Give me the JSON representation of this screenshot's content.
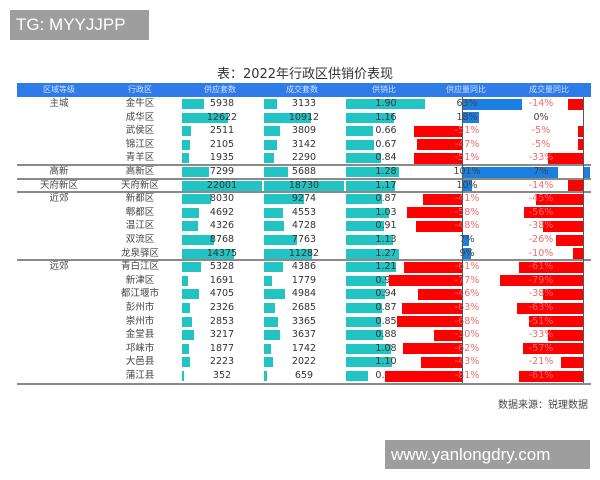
{
  "watermarks": {
    "top": "TG: MYYJJPP",
    "bottom": "www.yanlongdry.com"
  },
  "title": "表：2022年行政区供销价表现",
  "source": "数据来源：锐理数据",
  "colors": {
    "header": "#2f7bea",
    "bar": "#22c3c3",
    "negative": "#ff0000",
    "positive": "#1a7fe0",
    "neg_text": "#f06a6a"
  },
  "headers": [
    "区域等级",
    "行政区",
    "供应套数",
    "成交套数",
    "供销比",
    "供应量同比",
    "成交量同比"
  ],
  "rows": [
    {
      "level": "主城",
      "district": "金牛区",
      "supply": "5938",
      "deals": "3133",
      "ratio": "1.90",
      "supply_yoy": "63%",
      "deals_yoy": "-14%"
    },
    {
      "level": "",
      "district": "成华区",
      "supply": "12622",
      "deals": "10912",
      "ratio": "1.16",
      "supply_yoy": "18%",
      "deals_yoy": "0%"
    },
    {
      "level": "",
      "district": "武侯区",
      "supply": "2511",
      "deals": "3809",
      "ratio": "0.66",
      "supply_yoy": "-51%",
      "deals_yoy": "-5%"
    },
    {
      "level": "",
      "district": "锦江区",
      "supply": "2105",
      "deals": "3142",
      "ratio": "0.67",
      "supply_yoy": "-47%",
      "deals_yoy": "-5%"
    },
    {
      "level": "",
      "district": "青羊区",
      "supply": "1935",
      "deals": "2290",
      "ratio": "0.84",
      "supply_yoy": "-51%",
      "deals_yoy": "-33%"
    },
    {
      "level": "高新",
      "district": "高新区",
      "supply": "7299",
      "deals": "5688",
      "ratio": "1.28",
      "supply_yoy": "101%",
      "deals_yoy": "7%"
    },
    {
      "level": "天府新区",
      "district": "天府新区",
      "supply": "22001",
      "deals": "18730",
      "ratio": "1.17",
      "supply_yoy": "10%",
      "deals_yoy": "-14%"
    },
    {
      "level": "近郊",
      "district": "新都区",
      "supply": "8030",
      "deals": "9274",
      "ratio": "0.87",
      "supply_yoy": "-41%",
      "deals_yoy": "-45%"
    },
    {
      "level": "",
      "district": "郫都区",
      "supply": "4692",
      "deals": "4553",
      "ratio": "1.03",
      "supply_yoy": "-58%",
      "deals_yoy": "-56%"
    },
    {
      "level": "",
      "district": "温江区",
      "supply": "4326",
      "deals": "4728",
      "ratio": "0.91",
      "supply_yoy": "-48%",
      "deals_yoy": "-38%"
    },
    {
      "level": "",
      "district": "双流区",
      "supply": "8768",
      "deals": "7763",
      "ratio": "1.13",
      "supply_yoy": "7%",
      "deals_yoy": "-26%"
    },
    {
      "level": "",
      "district": "龙泉驿区",
      "supply": "14375",
      "deals": "11282",
      "ratio": "1.27",
      "supply_yoy": "9%",
      "deals_yoy": "-10%"
    },
    {
      "level": "远郊",
      "district": "青白江区",
      "supply": "5328",
      "deals": "4386",
      "ratio": "1.21",
      "supply_yoy": "-61%",
      "deals_yoy": "-61%"
    },
    {
      "level": "",
      "district": "新津区",
      "supply": "1691",
      "deals": "1779",
      "ratio": "0.95",
      "supply_yoy": "-77%",
      "deals_yoy": "-79%"
    },
    {
      "level": "",
      "district": "都江堰市",
      "supply": "4705",
      "deals": "4984",
      "ratio": "0.94",
      "supply_yoy": "-46%",
      "deals_yoy": "-38%"
    },
    {
      "level": "",
      "district": "彭州市",
      "supply": "2326",
      "deals": "2685",
      "ratio": "0.87",
      "supply_yoy": "-63%",
      "deals_yoy": "-63%"
    },
    {
      "level": "",
      "district": "崇州市",
      "supply": "2853",
      "deals": "3365",
      "ratio": "0.85",
      "supply_yoy": "-68%",
      "deals_yoy": "-51%"
    },
    {
      "level": "",
      "district": "金堂县",
      "supply": "3217",
      "deals": "3637",
      "ratio": "0.88",
      "supply_yoy": "-30%",
      "deals_yoy": "-33%"
    },
    {
      "level": "",
      "district": "邛崃市",
      "supply": "1877",
      "deals": "1742",
      "ratio": "1.08",
      "supply_yoy": "-62%",
      "deals_yoy": "-57%"
    },
    {
      "level": "",
      "district": "大邑县",
      "supply": "2223",
      "deals": "2022",
      "ratio": "1.10",
      "supply_yoy": "-43%",
      "deals_yoy": "-21%"
    },
    {
      "level": "",
      "district": "蒲江县",
      "supply": "352",
      "deals": "659",
      "ratio": "0.53",
      "supply_yoy": "-81%",
      "deals_yoy": "-61%"
    }
  ],
  "chart_data": {
    "type": "table",
    "title": "表：2022年行政区供销价表现",
    "columns": [
      "区域等级",
      "行政区",
      "供应套数",
      "成交套数",
      "供销比",
      "供应量同比",
      "成交量同比"
    ],
    "categories": [
      "金牛区",
      "成华区",
      "武侯区",
      "锦江区",
      "青羊区",
      "高新区",
      "天府新区",
      "新都区",
      "郫都区",
      "温江区",
      "双流区",
      "龙泉驿区",
      "青白江区",
      "新津区",
      "都江堰市",
      "彭州市",
      "崇州市",
      "金堂县",
      "邛崃市",
      "大邑县",
      "蒲江县"
    ],
    "groups": {
      "主城": [
        "金牛区",
        "成华区",
        "武侯区",
        "锦江区",
        "青羊区"
      ],
      "高新": [
        "高新区"
      ],
      "天府新区": [
        "天府新区"
      ],
      "近郊": [
        "新都区",
        "郫都区",
        "温江区",
        "双流区",
        "龙泉驿区"
      ],
      "远郊": [
        "青白江区",
        "新津区",
        "都江堰市",
        "彭州市",
        "崇州市",
        "金堂县",
        "邛崃市",
        "大邑县",
        "蒲江县"
      ]
    },
    "series": [
      {
        "name": "供应套数",
        "values": [
          5938,
          12622,
          2511,
          2105,
          1935,
          7299,
          22001,
          8030,
          4692,
          4326,
          8768,
          14375,
          5328,
          1691,
          4705,
          2326,
          2853,
          3217,
          1877,
          2223,
          352
        ]
      },
      {
        "name": "成交套数",
        "values": [
          3133,
          10912,
          3809,
          3142,
          2290,
          5688,
          18730,
          9274,
          4553,
          4728,
          7763,
          11282,
          4386,
          1779,
          4984,
          2685,
          3365,
          3637,
          1742,
          2022,
          659
        ]
      },
      {
        "name": "供销比",
        "values": [
          1.9,
          1.16,
          0.66,
          0.67,
          0.84,
          1.28,
          1.17,
          0.87,
          1.03,
          0.91,
          1.13,
          1.27,
          1.21,
          0.95,
          0.94,
          0.87,
          0.85,
          0.88,
          1.08,
          1.1,
          0.53
        ]
      },
      {
        "name": "供应量同比(%)",
        "values": [
          63,
          18,
          -51,
          -47,
          -51,
          101,
          10,
          -41,
          -58,
          -48,
          7,
          9,
          -61,
          -77,
          -46,
          -63,
          -68,
          -30,
          -62,
          -43,
          -81
        ]
      },
      {
        "name": "成交量同比(%)",
        "values": [
          -14,
          0,
          -5,
          -5,
          -33,
          7,
          -14,
          -45,
          -56,
          -38,
          -26,
          -10,
          -61,
          -79,
          -38,
          -63,
          -51,
          -33,
          -57,
          -21,
          -61
        ]
      }
    ],
    "source": "数据来源：锐理数据"
  }
}
